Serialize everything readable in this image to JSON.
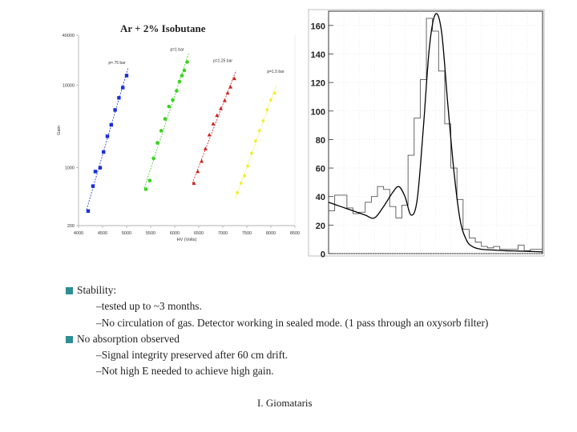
{
  "slide": {
    "chart_title": "Ar + 2% Isobutane",
    "bullets": [
      {
        "text": "Stability:",
        "subs": [
          "–tested up to ~3 months.",
          "–No circulation of gas. Detector working in sealed mode. (1 pass through an oxysorb filter)"
        ]
      },
      {
        "text": "No absorption observed",
        "subs": [
          "–Signal integrity preserved after 60 cm drift.",
          "–Not high E needed to achieve high gain."
        ]
      }
    ],
    "author": "I. Giomataris"
  },
  "chart_data": [
    {
      "type": "scatter",
      "xlabel": "HV (Volts)",
      "ylabel": "Gain",
      "xlim": [
        4000,
        8500
      ],
      "ylim": [
        200,
        40000
      ],
      "yscale": "log",
      "xticks": [
        "4000",
        "4500",
        "5000",
        "5500",
        "6000",
        "6500",
        "7000",
        "7500",
        "8000",
        "8500"
      ],
      "yticks": [
        {
          "value": 40000,
          "label": "40000"
        },
        {
          "value": 10000,
          "label": "10000"
        },
        {
          "value": 1000,
          "label": "1000"
        },
        {
          "value": 200,
          "label": "200"
        }
      ],
      "series": [
        {
          "name": "p=.75 bar",
          "color": "#1a2fd6",
          "marker": "square",
          "x": [
            4200,
            4300,
            4350,
            4450,
            4520,
            4600,
            4680,
            4760,
            4840,
            4920,
            5000
          ],
          "y": [
            300,
            600,
            900,
            1000,
            1550,
            2400,
            3300,
            5000,
            7000,
            9300,
            13000
          ]
        },
        {
          "name": "p=1 bar",
          "color": "#39d41e",
          "marker": "circle",
          "x": [
            5400,
            5480,
            5560,
            5640,
            5720,
            5800,
            5880,
            5960,
            6040,
            6100,
            6150,
            6200,
            6260
          ],
          "y": [
            550,
            700,
            1300,
            2000,
            2800,
            3900,
            5500,
            6600,
            8500,
            11000,
            13000,
            15000,
            19000
          ]
        },
        {
          "name": "p=1.25 bar",
          "color": "#cf1e1e",
          "marker": "triangle",
          "x": [
            6400,
            6480,
            6560,
            6640,
            6720,
            6800,
            6880,
            6960,
            7040,
            7100,
            7160,
            7240
          ],
          "y": [
            650,
            900,
            1200,
            1700,
            2500,
            3400,
            4300,
            5200,
            6500,
            8000,
            9500,
            12000
          ]
        },
        {
          "name": "p=1.5 bar",
          "color": "#eef026",
          "marker": "diamond",
          "x": [
            7300,
            7380,
            7450,
            7520,
            7600,
            7680,
            7760,
            7840,
            7920,
            8000,
            8080
          ],
          "y": [
            500,
            650,
            800,
            1050,
            1500,
            2100,
            2800,
            3700,
            5000,
            6600,
            8000
          ]
        }
      ],
      "annotations": [
        {
          "text": "p=.75 bar",
          "x": 4800,
          "y": 18000
        },
        {
          "text": "p=1 bar",
          "x": 6050,
          "y": 26000
        },
        {
          "text": "p=1.25 bar",
          "x": 7000,
          "y": 19000
        },
        {
          "text": "p=1.5 bar",
          "x": 8100,
          "y": 14000
        }
      ]
    },
    {
      "type": "line",
      "subtype": "histogram_with_fit",
      "xlim": [
        0,
        70
      ],
      "ylim": [
        0,
        170
      ],
      "yticks": [
        0,
        20,
        40,
        60,
        80,
        100,
        120,
        140,
        160
      ],
      "grid": true,
      "histogram": [
        30,
        41,
        41,
        32,
        28,
        29,
        36,
        40,
        47,
        45,
        33,
        25,
        34,
        69,
        95,
        122,
        165,
        156,
        128,
        91,
        60,
        38,
        17,
        11,
        8,
        5,
        4,
        5,
        3,
        3,
        3,
        6,
        2,
        3,
        3
      ],
      "fit": {
        "x": [
          0,
          4,
          8,
          12,
          15,
          18,
          21,
          23,
          25,
          27,
          29,
          31,
          33,
          35,
          37,
          39,
          41,
          43,
          45,
          47,
          50,
          54,
          58,
          62,
          66,
          70
        ],
        "y": [
          36,
          33,
          30,
          27,
          25,
          33,
          43,
          47,
          40,
          27,
          38,
          88,
          145,
          168,
          155,
          105,
          58,
          24,
          10,
          5,
          3,
          2.5,
          2,
          1.8,
          1.5,
          1.2
        ]
      }
    }
  ]
}
